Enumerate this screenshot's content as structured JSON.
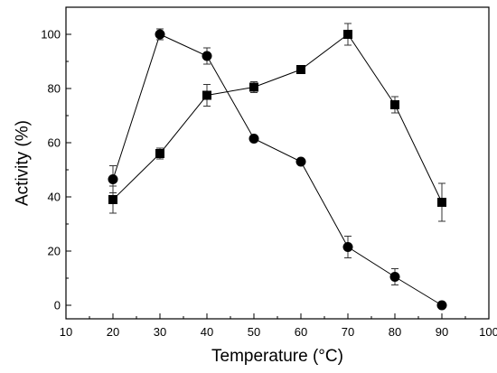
{
  "chart_data": {
    "type": "line",
    "xlabel": "Temperature (°C)",
    "ylabel": "Activity (%)",
    "xlim": [
      10,
      100
    ],
    "ylim": [
      -5,
      110
    ],
    "xticks": [
      10,
      20,
      30,
      40,
      50,
      60,
      70,
      80,
      90,
      100
    ],
    "yticks": [
      0,
      20,
      40,
      60,
      80,
      100
    ],
    "grid": false,
    "series": [
      {
        "marker": "circle",
        "x": [
          20,
          30,
          40,
          50,
          60,
          70,
          80,
          90
        ],
        "y": [
          46.5,
          100,
          92,
          61.5,
          53,
          21.5,
          10.5,
          0
        ],
        "err": [
          5,
          2,
          3,
          0,
          0,
          4,
          3,
          0
        ]
      },
      {
        "marker": "square",
        "x": [
          20,
          30,
          40,
          50,
          60,
          70,
          80,
          90
        ],
        "y": [
          39,
          56,
          77.5,
          80.5,
          87,
          100,
          74,
          38
        ],
        "err": [
          5,
          2,
          4,
          2,
          0,
          4,
          3,
          7
        ]
      }
    ]
  }
}
